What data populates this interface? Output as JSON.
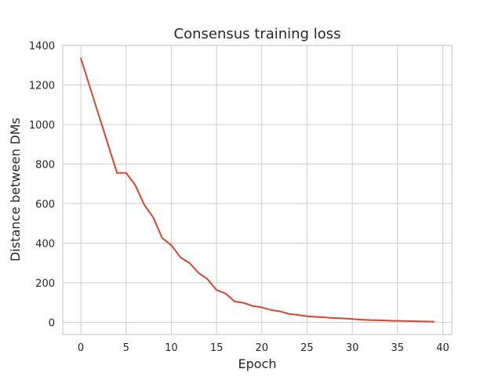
{
  "chart_data": {
    "type": "line",
    "title": "Consensus training loss",
    "xlabel": "Epoch",
    "ylabel": "Distance between DMs",
    "xlim": [
      -2,
      41
    ],
    "ylim": [
      -62,
      1400
    ],
    "xticks": [
      0,
      5,
      10,
      15,
      20,
      25,
      30,
      35,
      40
    ],
    "yticks": [
      0,
      200,
      400,
      600,
      800,
      1000,
      1200,
      1400
    ],
    "grid": true,
    "series": [
      {
        "color": "#d9442f",
        "x": [
          0,
          1,
          2,
          3,
          4,
          5,
          6,
          7,
          8,
          9,
          10,
          11,
          12,
          13,
          14,
          15,
          16,
          17,
          18,
          19,
          20,
          21,
          22,
          23,
          24,
          25,
          26,
          27,
          28,
          29,
          30,
          31,
          32,
          33,
          34,
          35,
          36,
          37,
          38,
          39
        ],
        "y": [
          1335,
          1190,
          1045,
          900,
          755,
          755,
          695,
          595,
          530,
          425,
          390,
          328,
          300,
          250,
          218,
          163,
          145,
          105,
          98,
          82,
          75,
          62,
          55,
          42,
          37,
          30,
          27,
          24,
          21,
          19,
          16,
          13,
          11,
          10,
          8,
          7,
          6,
          5,
          4,
          3
        ]
      }
    ]
  }
}
